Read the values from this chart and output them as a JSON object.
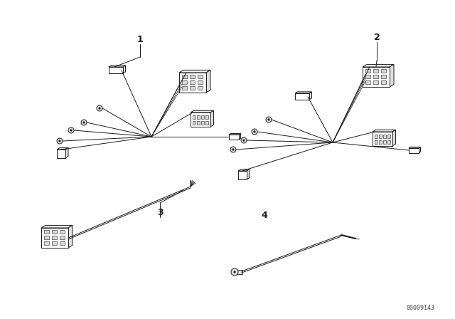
{
  "bg_color": "#ffffff",
  "line_color": "#1a1a1a",
  "part_number": "00009143",
  "fig_w": 6.4,
  "fig_h": 4.48,
  "dpi": 100
}
